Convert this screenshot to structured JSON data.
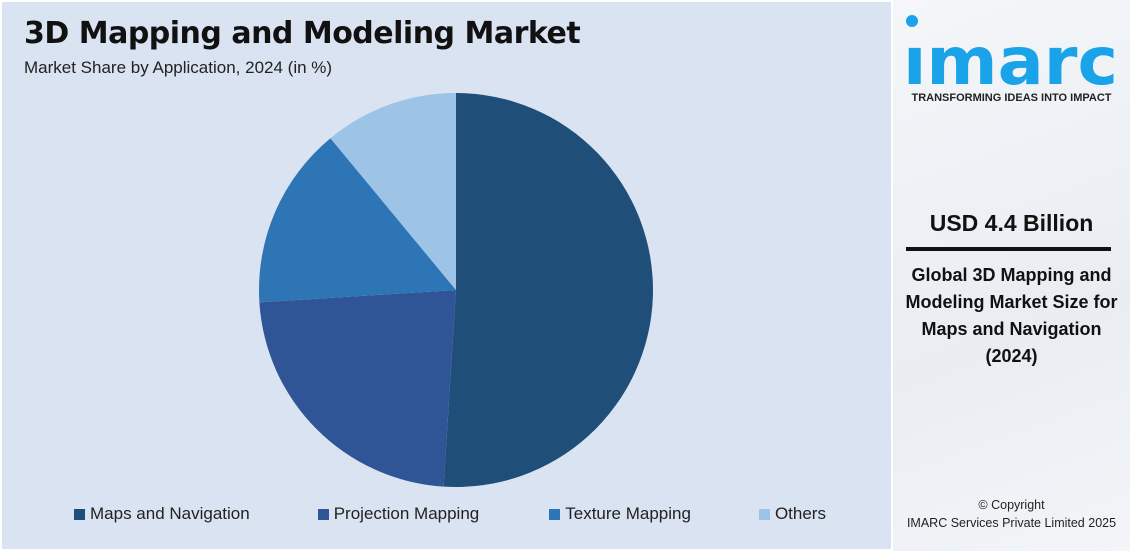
{
  "chart_data": {
    "type": "pie",
    "title": "3D Mapping and Modeling Market",
    "subtitle": "Market Share by Application, 2024 (in %)",
    "categories": [
      "Maps and Navigation",
      "Projection Mapping",
      "Texture Mapping",
      "Others"
    ],
    "values": [
      51,
      23,
      15,
      11
    ],
    "colors": [
      "#1f4e79",
      "#2f5597",
      "#2e75b6",
      "#9dc3e6"
    ],
    "start_angle": "12 o'clock, clockwise",
    "legend_placement": "bottom"
  },
  "panel": {
    "logo_text": "imarc",
    "tagline": "TRANSFORMING IDEAS INTO IMPACT",
    "value": "USD 4.4 Billion",
    "description": "Global 3D Mapping and Modeling Market Size for Maps and Navigation (2024)",
    "copyright_line1": "© Copyright",
    "copyright_line2": "IMARC Services Private Limited 2025",
    "brand_color": "#1aa3e8"
  }
}
